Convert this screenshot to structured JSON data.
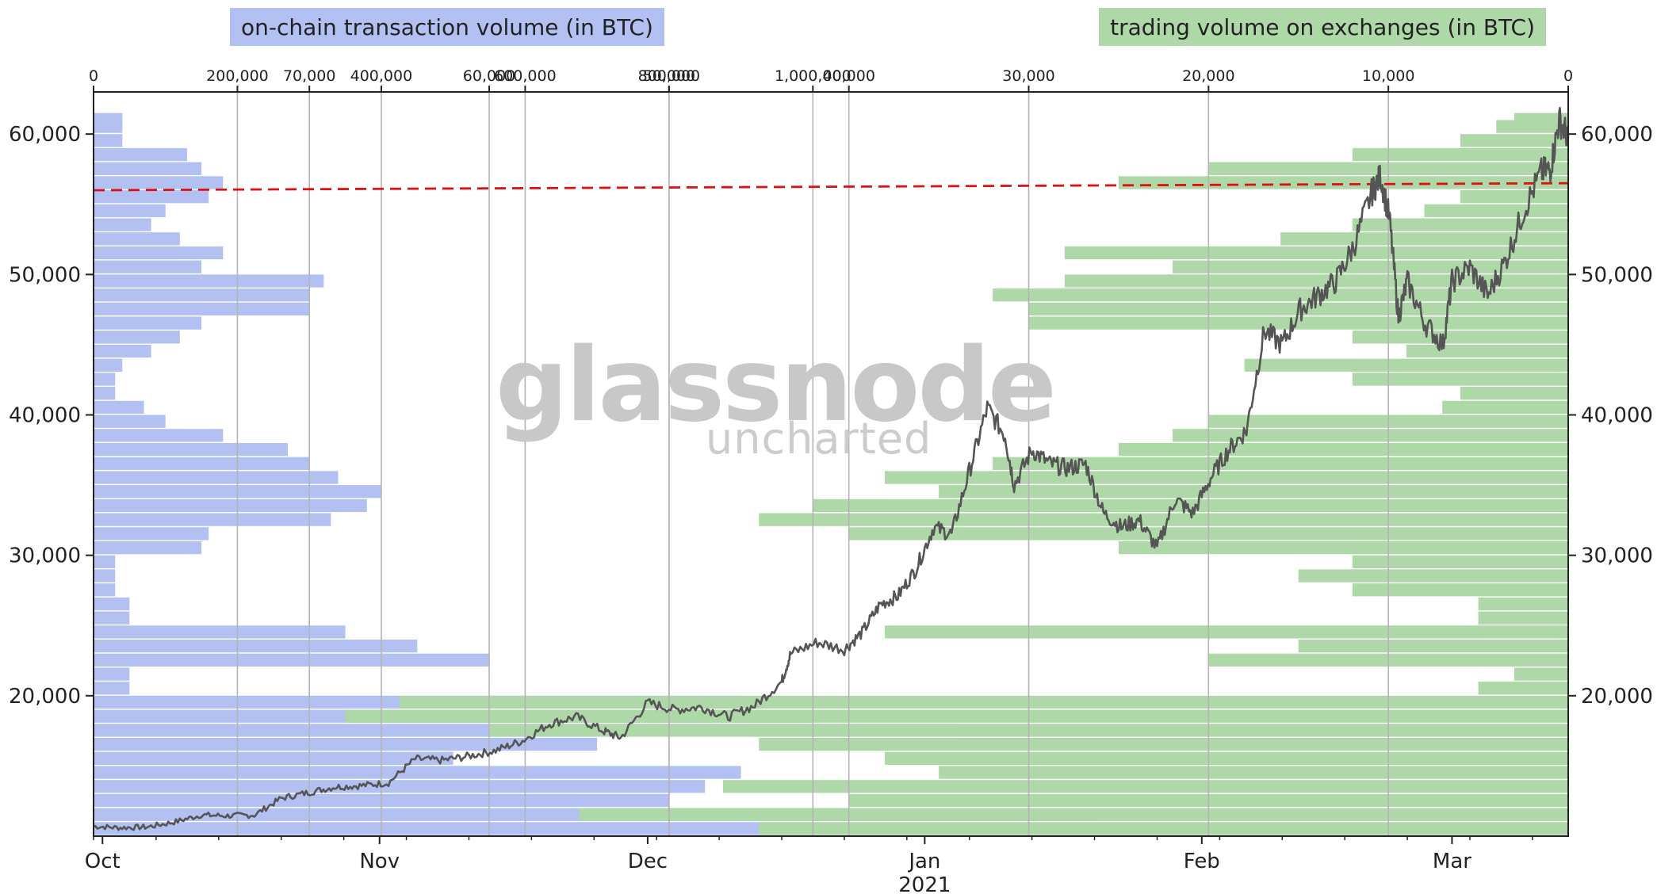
{
  "chart_data": {
    "type": "line",
    "legend_left": "on-chain transaction volume (in BTC)",
    "legend_right": "trading volume on exchanges (in BTC)",
    "watermark": {
      "brand": "glassnode",
      "sub": "uncharted"
    },
    "x_axis": {
      "range": [
        "2020-09-30",
        "2021-03-14"
      ],
      "ticks": [
        {
          "label": "Oct",
          "date": "2020-10-01"
        },
        {
          "label": "Nov",
          "date": "2020-11-01"
        },
        {
          "label": "Dec",
          "date": "2020-12-01"
        },
        {
          "label": "Jan",
          "date": "2021-01-01"
        },
        {
          "label": "Feb",
          "date": "2021-02-01"
        },
        {
          "label": "Mar",
          "date": "2021-03-01"
        }
      ],
      "year_label": "2021"
    },
    "y_axis": {
      "range": [
        10000,
        63000
      ],
      "ticks": [
        {
          "value": 20000,
          "label": "20,000"
        },
        {
          "value": 30000,
          "label": "30,000"
        },
        {
          "value": 40000,
          "label": "40,000"
        },
        {
          "value": 50000,
          "label": "50,000"
        },
        {
          "value": 60000,
          "label": "60,000"
        }
      ]
    },
    "top_axis_left": {
      "range": [
        0,
        2050000
      ],
      "ticks": [
        {
          "value": 0,
          "label": "0"
        },
        {
          "value": 200000,
          "label": "200,000"
        },
        {
          "value": 400000,
          "label": "400,000"
        },
        {
          "value": 600000,
          "label": "600,000"
        },
        {
          "value": 800000,
          "label": "800,000"
        },
        {
          "value": 1000000,
          "label": "1,000,000"
        }
      ]
    },
    "top_axis_right": {
      "range": [
        0,
        82000
      ],
      "ticks": [
        {
          "value": 70000,
          "label": "70,000"
        },
        {
          "value": 60000,
          "label": "60,000"
        },
        {
          "value": 50000,
          "label": "50,000"
        },
        {
          "value": 40000,
          "label": "40,000"
        },
        {
          "value": 30000,
          "label": "30,000"
        },
        {
          "value": 20000,
          "label": "20,000"
        },
        {
          "value": 10000,
          "label": "10,000"
        },
        {
          "value": 0,
          "label": "0"
        }
      ]
    },
    "reference_line": {
      "value_start": 56000,
      "value_end": 56500,
      "color": "#dd1111",
      "style": "dashed"
    },
    "price_series": {
      "color": "#555555",
      "points": [
        [
          "2020-09-30",
          10700
        ],
        [
          "2020-10-03",
          10600
        ],
        [
          "2020-10-06",
          10650
        ],
        [
          "2020-10-09",
          11000
        ],
        [
          "2020-10-12",
          11500
        ],
        [
          "2020-10-15",
          11450
        ],
        [
          "2020-10-18",
          11500
        ],
        [
          "2020-10-21",
          12700
        ],
        [
          "2020-10-24",
          13100
        ],
        [
          "2020-10-27",
          13500
        ],
        [
          "2020-10-30",
          13600
        ],
        [
          "2020-11-02",
          13800
        ],
        [
          "2020-11-05",
          15500
        ],
        [
          "2020-11-08",
          15400
        ],
        [
          "2020-11-11",
          15700
        ],
        [
          "2020-11-14",
          16100
        ],
        [
          "2020-11-17",
          16800
        ],
        [
          "2020-11-20",
          18000
        ],
        [
          "2020-11-23",
          18500
        ],
        [
          "2020-11-26",
          17500
        ],
        [
          "2020-11-28",
          17000
        ],
        [
          "2020-12-01",
          19500
        ],
        [
          "2020-12-04",
          19000
        ],
        [
          "2020-12-07",
          19200
        ],
        [
          "2020-12-10",
          18500
        ],
        [
          "2020-12-13",
          19300
        ],
        [
          "2020-12-16",
          21000
        ],
        [
          "2020-12-17",
          23000
        ],
        [
          "2020-12-20",
          23800
        ],
        [
          "2020-12-23",
          23300
        ],
        [
          "2020-12-25",
          24500
        ],
        [
          "2020-12-27",
          26500
        ],
        [
          "2020-12-29",
          27100
        ],
        [
          "2020-12-31",
          29000
        ],
        [
          "2021-01-02",
          32000
        ],
        [
          "2021-01-04",
          31500
        ],
        [
          "2021-01-06",
          36000
        ],
        [
          "2021-01-08",
          40500
        ],
        [
          "2021-01-10",
          38500
        ],
        [
          "2021-01-11",
          35000
        ],
        [
          "2021-01-13",
          37500
        ],
        [
          "2021-01-15",
          36500
        ],
        [
          "2021-01-17",
          36200
        ],
        [
          "2021-01-19",
          36500
        ],
        [
          "2021-01-21",
          33000
        ],
        [
          "2021-01-23",
          32000
        ],
        [
          "2021-01-25",
          32500
        ],
        [
          "2021-01-27",
          30500
        ],
        [
          "2021-01-29",
          34000
        ],
        [
          "2021-01-31",
          33000
        ],
        [
          "2021-02-02",
          35500
        ],
        [
          "2021-02-04",
          37500
        ],
        [
          "2021-02-06",
          38900
        ],
        [
          "2021-02-08",
          46000
        ],
        [
          "2021-02-10",
          45000
        ],
        [
          "2021-02-12",
          47500
        ],
        [
          "2021-02-14",
          48500
        ],
        [
          "2021-02-16",
          49500
        ],
        [
          "2021-02-18",
          52000
        ],
        [
          "2021-02-20",
          55800
        ],
        [
          "2021-02-21",
          57000
        ],
        [
          "2021-02-22",
          54000
        ],
        [
          "2021-02-23",
          47000
        ],
        [
          "2021-02-24",
          49500
        ],
        [
          "2021-02-26",
          46500
        ],
        [
          "2021-02-28",
          45000
        ],
        [
          "2021-03-01",
          49500
        ],
        [
          "2021-03-03",
          50500
        ],
        [
          "2021-03-05",
          48500
        ],
        [
          "2021-03-07",
          51000
        ],
        [
          "2021-03-09",
          54500
        ],
        [
          "2021-03-11",
          57300
        ],
        [
          "2021-03-12",
          57500
        ],
        [
          "2021-03-13",
          61000
        ],
        [
          "2021-03-14",
          59800
        ]
      ]
    },
    "onchain_volume_profile": {
      "color": "#b3c1f2",
      "price_bins": [
        10500,
        11500,
        12500,
        13500,
        14500,
        15500,
        16500,
        17500,
        18500,
        19500,
        20500,
        21500,
        22500,
        23500,
        24500,
        25500,
        26500,
        27500,
        28500,
        29500,
        30500,
        31500,
        32500,
        33500,
        34500,
        35500,
        36500,
        37500,
        38500,
        39500,
        40500,
        41500,
        42500,
        43500,
        44500,
        45500,
        46500,
        47500,
        48500,
        49500,
        50500,
        51500,
        52500,
        53500,
        54500,
        55500,
        56500,
        57500,
        58500,
        59500,
        60500,
        61000
      ],
      "volumes": [
        1000000,
        1400000,
        800000,
        850000,
        900000,
        500000,
        700000,
        1200000,
        1000000,
        900000,
        50000,
        50000,
        550000,
        450000,
        350000,
        50000,
        50000,
        30000,
        30000,
        30000,
        150000,
        160000,
        330000,
        380000,
        400000,
        340000,
        300000,
        270000,
        180000,
        100000,
        70000,
        30000,
        30000,
        40000,
        80000,
        120000,
        150000,
        300000,
        300000,
        320000,
        150000,
        180000,
        120000,
        80000,
        100000,
        160000,
        180000,
        150000,
        130000,
        40000,
        40000,
        40000
      ]
    },
    "exchange_volume_profile": {
      "color": "#afd8a8",
      "price_bins": [
        10500,
        11500,
        12500,
        13500,
        14500,
        15500,
        16500,
        17500,
        18500,
        19500,
        20500,
        21500,
        22500,
        23500,
        24500,
        25500,
        26500,
        27500,
        28500,
        29500,
        30500,
        31500,
        32500,
        33500,
        34500,
        35500,
        36500,
        37500,
        38500,
        39500,
        40500,
        41500,
        42500,
        43500,
        44500,
        45500,
        46500,
        47500,
        48500,
        49500,
        50500,
        51500,
        52500,
        53500,
        54500,
        55500,
        56500,
        57500,
        58500,
        59500,
        60500,
        61000
      ],
      "volumes": [
        45000,
        55000,
        40000,
        47000,
        35000,
        38000,
        45000,
        60000,
        68000,
        65000,
        5000,
        3000,
        20000,
        15000,
        38000,
        5000,
        5000,
        12000,
        15000,
        12000,
        25000,
        40000,
        45000,
        42000,
        35000,
        38000,
        32000,
        25000,
        22000,
        20000,
        7000,
        6000,
        12000,
        18000,
        9000,
        12000,
        30000,
        30000,
        32000,
        28000,
        22000,
        28000,
        16000,
        12000,
        8000,
        6000,
        25000,
        20000,
        12000,
        6000,
        4000,
        3000
      ]
    }
  }
}
